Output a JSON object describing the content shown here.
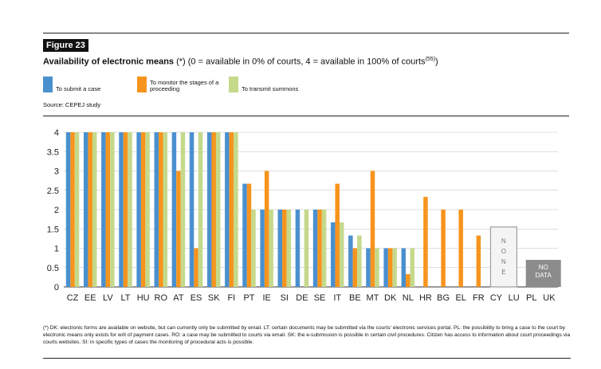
{
  "figure": {
    "label": "Figure 23",
    "title_bold": "Availability of electronic means",
    "title_rest": " (*) (0 = available in 0% of courts, 4 = available in 100% of courts",
    "title_sup": "(55)",
    "title_end": ")",
    "source": "Source: CEPEJ study",
    "note": "(*) DK: electronic forms are available on website, but can currently only be submitted by email. LT: certain documents may be submitted via the courts' electronic services portal. PL: the possibility to bring a case to the court by electronic means only exists for writ of payment cases. RO: a case may be submitted to courts via email. SK: the e-submission is possible in certain civil procedures. Citizen has access to information about court proceedings via courts websites. SI: in specific types of cases the monitoring of procedural acts is possible."
  },
  "legend": [
    {
      "label": "To submit a case",
      "color": "#4a90cf"
    },
    {
      "label": "To monitor the stages of a proceeding",
      "color": "#f7941d"
    },
    {
      "label": "To transmit summons",
      "color": "#c5d98b"
    }
  ],
  "chart_data": {
    "type": "bar",
    "categories": [
      "CZ",
      "EE",
      "LV",
      "LT",
      "HU",
      "RO",
      "AT",
      "ES",
      "SK",
      "FI",
      "PT",
      "IE",
      "SI",
      "DE",
      "SE",
      "IT",
      "BE",
      "MT",
      "DK",
      "NL",
      "HR",
      "BG",
      "EL",
      "FR",
      "CY",
      "LU",
      "PL",
      "UK"
    ],
    "series": [
      {
        "name": "To submit a case",
        "color": "#4a90cf",
        "values": [
          4,
          4,
          4,
          4,
          4,
          4,
          4,
          4,
          4,
          4,
          2.67,
          2,
          2,
          2,
          2,
          1.67,
          1.33,
          1,
          1,
          1,
          0,
          0,
          0,
          0,
          null,
          null,
          null,
          null
        ]
      },
      {
        "name": "To monitor the stages of a proceeding",
        "color": "#f7941d",
        "values": [
          4,
          4,
          4,
          4,
          4,
          4,
          3,
          1,
          4,
          4,
          2.67,
          3,
          2,
          0,
          2,
          2.67,
          1,
          3,
          1,
          0.33,
          2.33,
          2,
          2,
          1.33,
          null,
          null,
          null,
          null
        ]
      },
      {
        "name": "To transmit summons",
        "color": "#c5d98b",
        "values": [
          4,
          4,
          4,
          4,
          4,
          4,
          4,
          4,
          4,
          4,
          2,
          2,
          2,
          2,
          2,
          1.67,
          1.33,
          1,
          1,
          1,
          0,
          0,
          0,
          0,
          null,
          null,
          null,
          null
        ]
      }
    ],
    "ylim": [
      0,
      4
    ],
    "yticks": [
      "0",
      "0.5",
      "1",
      "1.5",
      "2",
      "2.5",
      "3",
      "3.5",
      "4"
    ],
    "grid": true,
    "annotations": [
      {
        "text": "N O N E",
        "category": "CY"
      },
      {
        "text": "NO DATA",
        "category": "PL"
      }
    ]
  }
}
